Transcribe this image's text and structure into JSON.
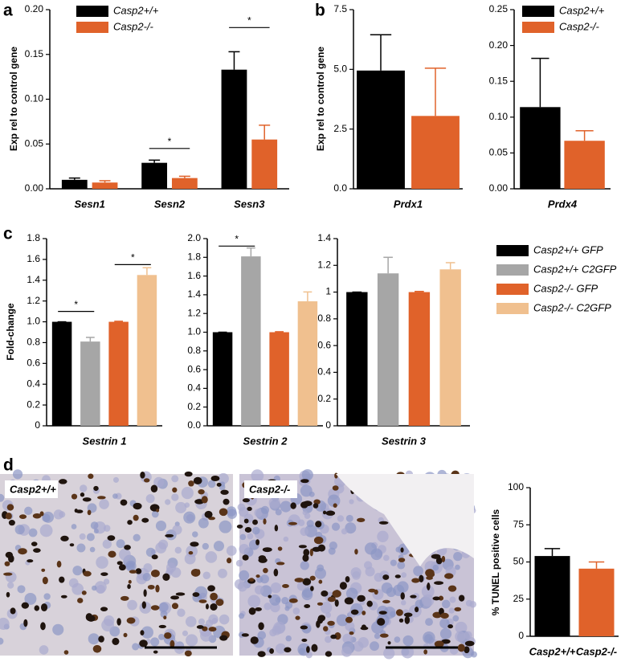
{
  "chart_data": [
    {
      "type": "bar",
      "panel": "a",
      "ylabel": "Exp rel to control gene",
      "categories": [
        "Sesn1",
        "Sesn2",
        "Sesn3"
      ],
      "series": [
        {
          "name": "Casp2+/+",
          "color": "#000000",
          "values": [
            0.01,
            0.029,
            0.133
          ],
          "errors": [
            0.002,
            0.003,
            0.02
          ]
        },
        {
          "name": "Casp2-/-",
          "color": "#e0622a",
          "values": [
            0.007,
            0.012,
            0.055
          ],
          "errors": [
            0.002,
            0.002,
            0.016
          ]
        }
      ],
      "ylim": [
        0,
        0.2
      ],
      "yticks": [
        {
          "value": 0,
          "label": "0.00"
        },
        {
          "value": 0.05,
          "label": "0.05"
        },
        {
          "value": 0.1,
          "label": "0.10"
        },
        {
          "value": 0.15,
          "label": "0.15"
        },
        {
          "value": 0.2,
          "label": "0.20"
        }
      ],
      "annotations": [
        {
          "text": "*",
          "y": 0.045
        },
        {
          "text": "*",
          "y": 0.18
        }
      ],
      "legend": true
    },
    {
      "type": "bar",
      "panel": "b",
      "ylabel": "Exp rel to control gene",
      "categories": [
        "Prdx1"
      ],
      "series": [
        {
          "color": "#000000",
          "values": [
            4.95
          ],
          "errors": [
            1.5
          ]
        },
        {
          "color": "#e0622a",
          "values": [
            3.05
          ],
          "errors": [
            2.0
          ]
        }
      ],
      "ylim": [
        0,
        7.5
      ],
      "yticks": [
        {
          "value": 0,
          "label": "0.0"
        },
        2.5,
        {
          "value": 5,
          "label": "5.0"
        },
        7.5
      ]
    },
    {
      "type": "bar",
      "categories": [
        "Prdx4"
      ],
      "series": [
        {
          "name": "Casp2+/+",
          "color": "#000000",
          "values": [
            0.114
          ],
          "errors": [
            0.068
          ]
        },
        {
          "name": "Casp2-/-",
          "color": "#e0622a",
          "values": [
            0.067
          ],
          "errors": [
            0.014
          ]
        }
      ],
      "ylim": [
        0,
        0.25
      ],
      "yticks": [
        {
          "value": 0,
          "label": "0.00"
        },
        0.05,
        {
          "value": 0.1,
          "label": "0.10"
        },
        0.15,
        {
          "value": 0.2,
          "label": "0.20"
        },
        0.25
      ],
      "legend": true
    },
    {
      "type": "bar",
      "panel": "c",
      "ylabel": "Fold-change",
      "categories": [
        "Sestrin 1"
      ],
      "series": [
        {
          "color": "#000000",
          "values": [
            1.0
          ],
          "errors": [
            0
          ]
        },
        {
          "color": "#a6a6a6",
          "values": [
            0.81
          ],
          "errors": [
            0.04
          ]
        },
        {
          "color": "#e0622a",
          "values": [
            1.0
          ],
          "errors": [
            0.005
          ]
        },
        {
          "color": "#f0c08f",
          "values": [
            1.45
          ],
          "errors": [
            0.07
          ]
        }
      ],
      "ylim": [
        0,
        1.8
      ],
      "yticks": [
        0,
        0.2,
        0.4,
        0.6,
        0.8,
        {
          "value": 1,
          "label": "1.0"
        },
        1.2,
        1.4,
        1.6,
        1.8
      ],
      "annotations": [
        {
          "text": "*",
          "y": 1.1
        },
        {
          "text": "*",
          "y": 1.55
        }
      ]
    },
    {
      "type": "bar",
      "categories": [
        "Sestrin 2"
      ],
      "series": [
        {
          "color": "#000000",
          "values": [
            1.0
          ],
          "errors": [
            0
          ]
        },
        {
          "color": "#a6a6a6",
          "values": [
            1.81
          ],
          "errors": [
            0.09
          ]
        },
        {
          "color": "#e0622a",
          "values": [
            1.0
          ],
          "errors": [
            0.005
          ]
        },
        {
          "color": "#f0c08f",
          "values": [
            1.33
          ],
          "errors": [
            0.1
          ]
        }
      ],
      "ylim": [
        0,
        2.0
      ],
      "yticks": [
        {
          "value": 0,
          "label": "0.0"
        },
        0.2,
        0.4,
        0.6,
        0.8,
        {
          "value": 1,
          "label": "1.0"
        },
        1.2,
        1.4,
        1.6,
        1.8,
        {
          "value": 2,
          "label": "2.0"
        }
      ],
      "annotations": [
        {
          "text": "*",
          "y": 1.92
        }
      ]
    },
    {
      "type": "bar",
      "categories": [
        "Sestrin 3"
      ],
      "series": [
        {
          "name": "Casp2+/+ GFP",
          "color": "#000000",
          "values": [
            1.0
          ],
          "errors": [
            0
          ]
        },
        {
          "name": "Casp2+/+ C2GFP",
          "color": "#a6a6a6",
          "values": [
            1.14
          ],
          "errors": [
            0.12
          ]
        },
        {
          "name": "Casp2-/- GFP",
          "color": "#e0622a",
          "values": [
            1.0
          ],
          "errors": [
            0.005
          ]
        },
        {
          "name": "Casp2-/- C2GFP",
          "color": "#f0c08f",
          "values": [
            1.17
          ],
          "errors": [
            0.05
          ]
        }
      ],
      "ylim": [
        0,
        1.4
      ],
      "yticks": [
        0,
        0.2,
        0.4,
        0.6,
        0.8,
        1,
        1.2,
        1.4
      ],
      "legend": true
    },
    {
      "type": "bar",
      "panel": "d",
      "ylabel": "% TUNEL positive cells",
      "categories": [
        "Casp2+/+",
        "Casp2-/-"
      ],
      "series": [
        {
          "colors": [
            "#000000",
            "#e0622a"
          ],
          "values": [
            54,
            45.5
          ],
          "errors": [
            5,
            4.5
          ]
        }
      ],
      "ylim": [
        0,
        100
      ],
      "yticks": [
        0,
        25,
        50,
        75,
        100
      ]
    }
  ],
  "images": [
    {
      "label": "Casp2+/+"
    },
    {
      "label": "Casp2-/-"
    }
  ]
}
